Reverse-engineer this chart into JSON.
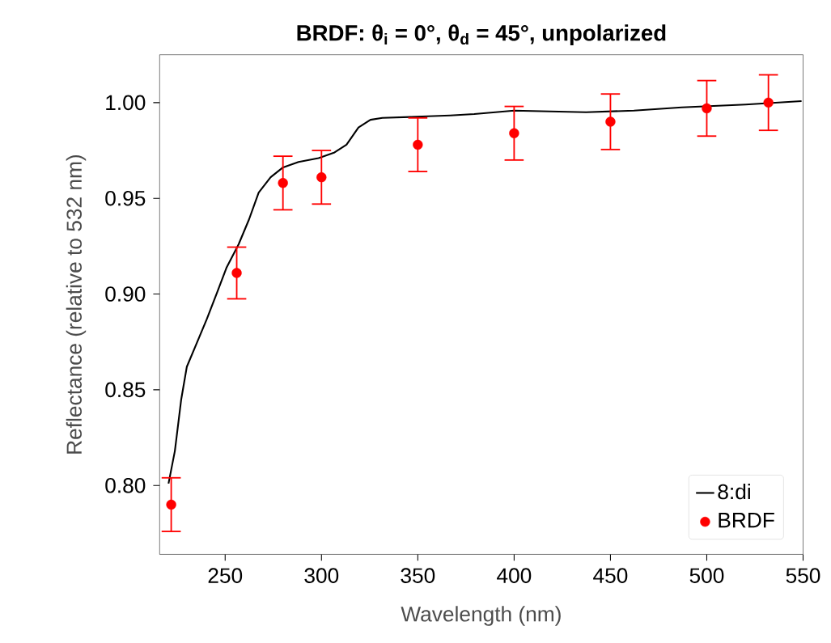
{
  "chart_data": {
    "type": "line",
    "title": "BRDF: θ$_{i}$ = 0°, θ$_{d}$ = 45°, unpolarized",
    "xlabel": "Wavelength (nm)",
    "ylabel": "Reflectance (relative to 532 nm)",
    "xlim": [
      216,
      550
    ],
    "ylim": [
      0.764,
      1.025
    ],
    "xticks": [
      250,
      300,
      350,
      400,
      450,
      500,
      550
    ],
    "yticks": [
      {
        "value": 0.8,
        "label": "0.80"
      },
      {
        "value": 0.85,
        "label": "0.85"
      },
      {
        "value": 0.9,
        "label": "0.90"
      },
      {
        "value": 0.95,
        "label": "0.95"
      },
      {
        "value": 1.0,
        "label": "1.00"
      }
    ],
    "legend": "bottom right",
    "series": [
      {
        "name": "8:di",
        "color": "#000000",
        "x": [
          220.6,
          223.9,
          227.2,
          230.1,
          235.1,
          240.5,
          245.9,
          250.8,
          257,
          262.4,
          267.4,
          273.6,
          279.8,
          288.1,
          298.5,
          306.8,
          313,
          319.2,
          325.4,
          331.6,
          346.1,
          366.8,
          379.3,
          400,
          437.3,
          462.2,
          487,
          520.2,
          549.2
        ],
        "values": [
          0.801,
          0.818,
          0.845,
          0.862,
          0.874,
          0.887,
          0.901,
          0.914,
          0.926,
          0.939,
          0.953,
          0.961,
          0.966,
          0.969,
          0.971,
          0.974,
          0.978,
          0.987,
          0.991,
          0.992,
          0.9925,
          0.9933,
          0.994,
          0.9958,
          0.995,
          0.9958,
          0.9975,
          0.999,
          1.0008
        ]
      },
      {
        "name": "BRDF",
        "type": "scatter",
        "marker": "circle",
        "color": "#ff0000",
        "x": [
          222,
          256,
          280,
          300,
          350,
          400,
          450,
          500,
          532
        ],
        "values": [
          0.79,
          0.911,
          0.958,
          0.961,
          0.978,
          0.984,
          0.99,
          0.997,
          1.0
        ],
        "errors": [
          0.014,
          0.0135,
          0.014,
          0.014,
          0.014,
          0.014,
          0.0145,
          0.0145,
          0.0145
        ]
      }
    ]
  }
}
